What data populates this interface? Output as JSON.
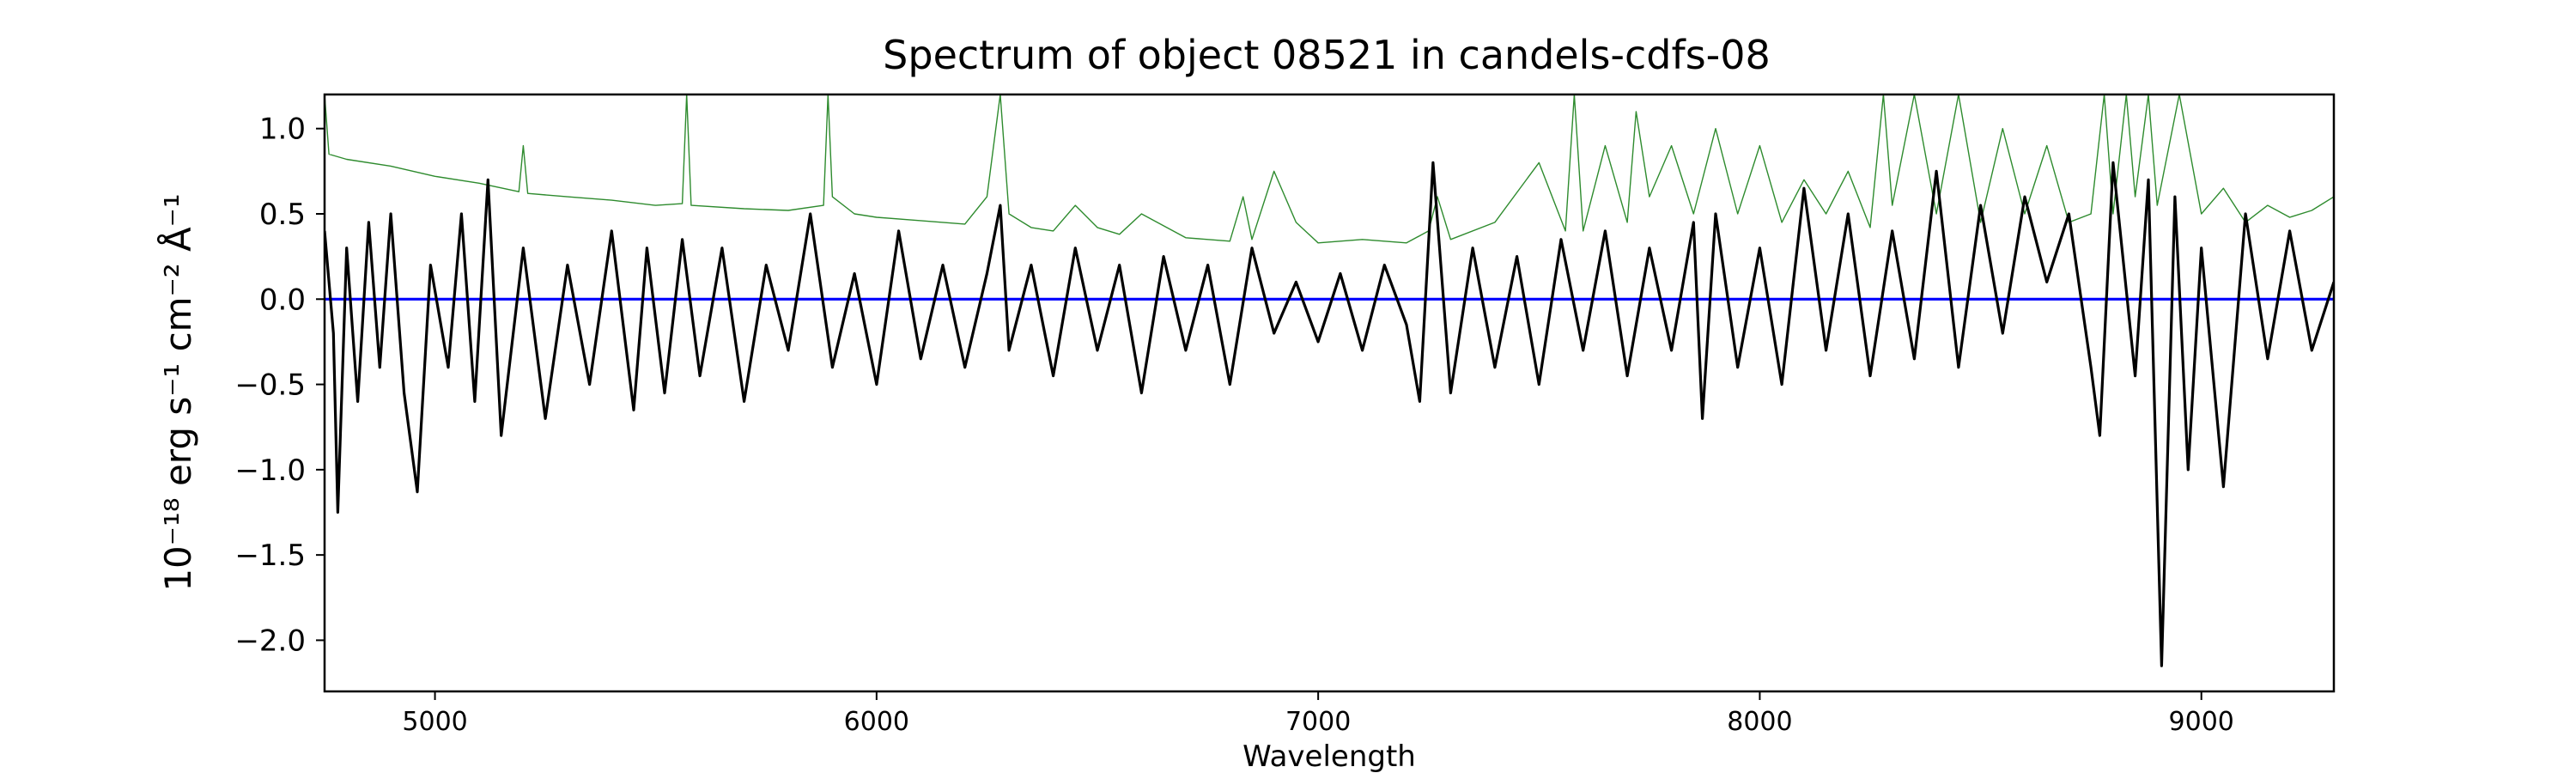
{
  "chart_data": {
    "type": "line",
    "title": "Spectrum of object 08521 in candels-cdfs-08",
    "xlabel": "Wavelength",
    "ylabel": "10⁻¹⁸ erg s⁻¹ cm⁻² Å⁻¹",
    "xlim": [
      4750,
      9300
    ],
    "ylim": [
      -2.3,
      1.2
    ],
    "x_ticks": [
      5000,
      6000,
      7000,
      8000,
      9000
    ],
    "y_ticks": [
      1.0,
      0.5,
      0.0,
      -0.5,
      -1.0,
      -1.5,
      -2.0
    ],
    "y_tick_labels": [
      "1.0",
      "0.5",
      "0.0",
      "−0.5",
      "−1.0",
      "−1.5",
      "−2.0"
    ],
    "grid": false,
    "legend": null,
    "colors": {
      "flux": "#000000",
      "noise": "#2e8b2e",
      "zero": "#0000ff"
    },
    "series": [
      {
        "id": "flux",
        "color": "#000000",
        "x": [
          4750,
          4770,
          4780,
          4800,
          4825,
          4850,
          4875,
          4900,
          4930,
          4960,
          4990,
          5030,
          5060,
          5090,
          5120,
          5150,
          5200,
          5250,
          5300,
          5350,
          5400,
          5450,
          5480,
          5520,
          5560,
          5600,
          5650,
          5700,
          5750,
          5800,
          5850,
          5900,
          5950,
          6000,
          6050,
          6100,
          6150,
          6200,
          6250,
          6280,
          6300,
          6350,
          6400,
          6450,
          6500,
          6550,
          6600,
          6650,
          6700,
          6750,
          6800,
          6850,
          6900,
          6950,
          7000,
          7050,
          7100,
          7150,
          7200,
          7230,
          7260,
          7300,
          7350,
          7400,
          7450,
          7500,
          7550,
          7600,
          7650,
          7700,
          7750,
          7800,
          7850,
          7870,
          7900,
          7950,
          8000,
          8050,
          8100,
          8150,
          8200,
          8250,
          8300,
          8350,
          8400,
          8450,
          8500,
          8550,
          8600,
          8650,
          8700,
          8750,
          8770,
          8800,
          8850,
          8880,
          8910,
          8940,
          8970,
          9000,
          9050,
          9100,
          9150,
          9200,
          9250,
          9300
        ],
        "y": [
          0.4,
          -0.2,
          -1.25,
          0.3,
          -0.6,
          0.45,
          -0.4,
          0.5,
          -0.55,
          -1.13,
          0.2,
          -0.4,
          0.5,
          -0.6,
          0.7,
          -0.8,
          0.3,
          -0.7,
          0.2,
          -0.5,
          0.4,
          -0.65,
          0.3,
          -0.55,
          0.35,
          -0.45,
          0.3,
          -0.6,
          0.2,
          -0.3,
          0.5,
          -0.4,
          0.15,
          -0.5,
          0.4,
          -0.35,
          0.2,
          -0.4,
          0.15,
          0.55,
          -0.3,
          0.2,
          -0.45,
          0.3,
          -0.3,
          0.2,
          -0.55,
          0.25,
          -0.3,
          0.2,
          -0.5,
          0.3,
          -0.2,
          0.1,
          -0.25,
          0.15,
          -0.3,
          0.2,
          -0.15,
          -0.6,
          0.8,
          -0.55,
          0.3,
          -0.4,
          0.25,
          -0.5,
          0.35,
          -0.3,
          0.4,
          -0.45,
          0.3,
          -0.3,
          0.45,
          -0.7,
          0.5,
          -0.4,
          0.3,
          -0.5,
          0.65,
          -0.3,
          0.5,
          -0.45,
          0.4,
          -0.35,
          0.75,
          -0.4,
          0.55,
          -0.2,
          0.6,
          0.1,
          0.5,
          -0.4,
          -0.8,
          0.8,
          -0.45,
          0.7,
          -2.15,
          0.6,
          -1.0,
          0.3,
          -1.1,
          0.5,
          -0.35,
          0.4,
          -0.3,
          0.1
        ]
      },
      {
        "id": "noise",
        "color": "#2e8b2e",
        "x": [
          4750,
          4760,
          4800,
          4900,
          5000,
          5100,
          5190,
          5200,
          5210,
          5300,
          5400,
          5500,
          5560,
          5570,
          5580,
          5700,
          5800,
          5880,
          5890,
          5900,
          5950,
          6000,
          6100,
          6200,
          6250,
          6280,
          6300,
          6350,
          6400,
          6450,
          6500,
          6550,
          6600,
          6700,
          6800,
          6830,
          6850,
          6900,
          6950,
          7000,
          7100,
          7200,
          7250,
          7270,
          7300,
          7400,
          7500,
          7560,
          7580,
          7600,
          7650,
          7700,
          7720,
          7750,
          7800,
          7850,
          7900,
          7950,
          8000,
          8050,
          8100,
          8150,
          8200,
          8250,
          8280,
          8300,
          8350,
          8400,
          8450,
          8500,
          8550,
          8600,
          8650,
          8700,
          8750,
          8780,
          8800,
          8830,
          8850,
          8880,
          8900,
          8950,
          9000,
          9050,
          9100,
          9150,
          9200,
          9250,
          9300
        ],
        "y": [
          1.2,
          0.85,
          0.82,
          0.78,
          0.72,
          0.68,
          0.63,
          0.9,
          0.62,
          0.6,
          0.58,
          0.55,
          0.56,
          1.2,
          0.55,
          0.53,
          0.52,
          0.55,
          1.2,
          0.6,
          0.5,
          0.48,
          0.46,
          0.44,
          0.6,
          1.2,
          0.5,
          0.42,
          0.4,
          0.55,
          0.42,
          0.38,
          0.5,
          0.36,
          0.34,
          0.6,
          0.35,
          0.75,
          0.45,
          0.33,
          0.35,
          0.33,
          0.4,
          0.6,
          0.35,
          0.45,
          0.8,
          0.4,
          1.2,
          0.4,
          0.9,
          0.45,
          1.1,
          0.6,
          0.9,
          0.5,
          1.0,
          0.5,
          0.9,
          0.45,
          0.7,
          0.5,
          0.75,
          0.42,
          1.2,
          0.55,
          1.2,
          0.5,
          1.2,
          0.45,
          1.0,
          0.5,
          0.9,
          0.45,
          0.5,
          1.2,
          0.5,
          1.2,
          0.6,
          1.2,
          0.55,
          1.2,
          0.5,
          0.65,
          0.45,
          0.55,
          0.48,
          0.52,
          0.6
        ]
      },
      {
        "id": "zero",
        "color": "#0000ff",
        "x": [
          4750,
          9300
        ],
        "y": [
          0,
          0
        ]
      }
    ]
  }
}
